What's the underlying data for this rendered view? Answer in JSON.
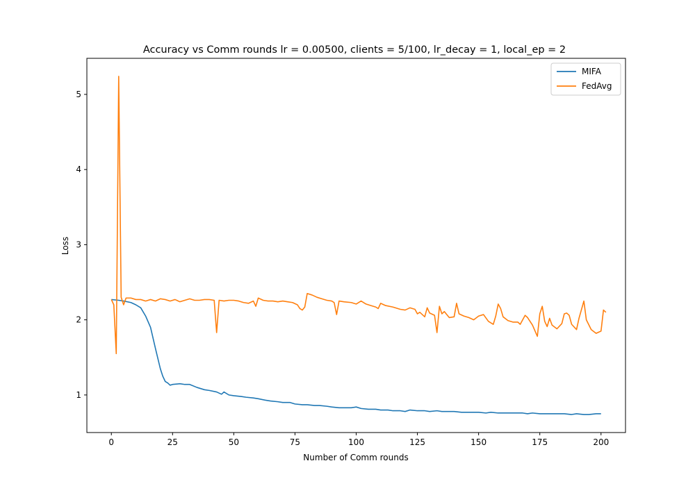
{
  "chart_data": {
    "type": "line",
    "title": "Accuracy vs Comm rounds lr = 0.00500, clients = 5/100, lr_decay = 1, local_ep = 2",
    "xlabel": "Number of Comm rounds",
    "ylabel": "Loss",
    "xlim": [
      -10,
      210
    ],
    "ylim": [
      0.5,
      5.48
    ],
    "xticks": [
      0,
      25,
      50,
      75,
      100,
      125,
      150,
      175,
      200
    ],
    "yticks": [
      1,
      2,
      3,
      4,
      5
    ],
    "grid": false,
    "legend": "top-right",
    "series": [
      {
        "name": "MIFA",
        "color": "#1f77b4",
        "points": [
          [
            0,
            2.27
          ],
          [
            3,
            2.26
          ],
          [
            5,
            2.25
          ],
          [
            8,
            2.23
          ],
          [
            10,
            2.2
          ],
          [
            12,
            2.16
          ],
          [
            14,
            2.05
          ],
          [
            16,
            1.9
          ],
          [
            18,
            1.62
          ],
          [
            20,
            1.35
          ],
          [
            21,
            1.25
          ],
          [
            22,
            1.18
          ],
          [
            23,
            1.16
          ],
          [
            24,
            1.13
          ],
          [
            25,
            1.14
          ],
          [
            28,
            1.15
          ],
          [
            30,
            1.14
          ],
          [
            32,
            1.14
          ],
          [
            35,
            1.1
          ],
          [
            38,
            1.07
          ],
          [
            40,
            1.06
          ],
          [
            43,
            1.04
          ],
          [
            45,
            1.01
          ],
          [
            46,
            1.04
          ],
          [
            48,
            1.0
          ],
          [
            50,
            0.99
          ],
          [
            53,
            0.98
          ],
          [
            55,
            0.97
          ],
          [
            58,
            0.96
          ],
          [
            60,
            0.95
          ],
          [
            63,
            0.93
          ],
          [
            65,
            0.92
          ],
          [
            68,
            0.91
          ],
          [
            70,
            0.9
          ],
          [
            73,
            0.9
          ],
          [
            75,
            0.88
          ],
          [
            78,
            0.87
          ],
          [
            80,
            0.87
          ],
          [
            83,
            0.86
          ],
          [
            85,
            0.86
          ],
          [
            88,
            0.85
          ],
          [
            90,
            0.84
          ],
          [
            93,
            0.83
          ],
          [
            95,
            0.83
          ],
          [
            98,
            0.83
          ],
          [
            100,
            0.84
          ],
          [
            102,
            0.82
          ],
          [
            105,
            0.81
          ],
          [
            108,
            0.81
          ],
          [
            110,
            0.8
          ],
          [
            113,
            0.8
          ],
          [
            115,
            0.79
          ],
          [
            118,
            0.79
          ],
          [
            120,
            0.78
          ],
          [
            122,
            0.8
          ],
          [
            125,
            0.79
          ],
          [
            128,
            0.79
          ],
          [
            130,
            0.78
          ],
          [
            133,
            0.79
          ],
          [
            135,
            0.78
          ],
          [
            138,
            0.78
          ],
          [
            140,
            0.78
          ],
          [
            143,
            0.77
          ],
          [
            145,
            0.77
          ],
          [
            148,
            0.77
          ],
          [
            150,
            0.77
          ],
          [
            153,
            0.76
          ],
          [
            155,
            0.77
          ],
          [
            158,
            0.76
          ],
          [
            160,
            0.76
          ],
          [
            163,
            0.76
          ],
          [
            165,
            0.76
          ],
          [
            168,
            0.76
          ],
          [
            170,
            0.75
          ],
          [
            172,
            0.76
          ],
          [
            175,
            0.75
          ],
          [
            178,
            0.75
          ],
          [
            180,
            0.75
          ],
          [
            183,
            0.75
          ],
          [
            185,
            0.75
          ],
          [
            188,
            0.74
          ],
          [
            190,
            0.75
          ],
          [
            193,
            0.74
          ],
          [
            195,
            0.74
          ],
          [
            198,
            0.75
          ],
          [
            200,
            0.75
          ]
        ]
      },
      {
        "name": "FedAvg",
        "color": "#ff7f0e",
        "points": [
          [
            0,
            2.27
          ],
          [
            1,
            2.2
          ],
          [
            2,
            1.55
          ],
          [
            3,
            5.24
          ],
          [
            4,
            2.3
          ],
          [
            5,
            2.2
          ],
          [
            6,
            2.29
          ],
          [
            8,
            2.29
          ],
          [
            10,
            2.27
          ],
          [
            12,
            2.27
          ],
          [
            14,
            2.25
          ],
          [
            16,
            2.27
          ],
          [
            18,
            2.25
          ],
          [
            20,
            2.28
          ],
          [
            22,
            2.27
          ],
          [
            24,
            2.25
          ],
          [
            26,
            2.27
          ],
          [
            28,
            2.24
          ],
          [
            30,
            2.26
          ],
          [
            32,
            2.28
          ],
          [
            34,
            2.26
          ],
          [
            36,
            2.26
          ],
          [
            38,
            2.27
          ],
          [
            40,
            2.27
          ],
          [
            42,
            2.26
          ],
          [
            43,
            1.83
          ],
          [
            44,
            2.26
          ],
          [
            46,
            2.25
          ],
          [
            48,
            2.26
          ],
          [
            50,
            2.26
          ],
          [
            52,
            2.25
          ],
          [
            54,
            2.23
          ],
          [
            56,
            2.22
          ],
          [
            58,
            2.25
          ],
          [
            59,
            2.18
          ],
          [
            60,
            2.29
          ],
          [
            62,
            2.26
          ],
          [
            64,
            2.25
          ],
          [
            66,
            2.25
          ],
          [
            68,
            2.24
          ],
          [
            70,
            2.25
          ],
          [
            72,
            2.24
          ],
          [
            74,
            2.23
          ],
          [
            76,
            2.2
          ],
          [
            77,
            2.15
          ],
          [
            78,
            2.13
          ],
          [
            79,
            2.17
          ],
          [
            80,
            2.35
          ],
          [
            82,
            2.33
          ],
          [
            84,
            2.3
          ],
          [
            86,
            2.28
          ],
          [
            88,
            2.26
          ],
          [
            90,
            2.25
          ],
          [
            91,
            2.23
          ],
          [
            92,
            2.07
          ],
          [
            93,
            2.25
          ],
          [
            95,
            2.24
          ],
          [
            98,
            2.23
          ],
          [
            100,
            2.21
          ],
          [
            102,
            2.25
          ],
          [
            104,
            2.21
          ],
          [
            106,
            2.19
          ],
          [
            108,
            2.17
          ],
          [
            109,
            2.15
          ],
          [
            110,
            2.22
          ],
          [
            112,
            2.19
          ],
          [
            115,
            2.17
          ],
          [
            118,
            2.14
          ],
          [
            120,
            2.13
          ],
          [
            122,
            2.16
          ],
          [
            124,
            2.14
          ],
          [
            125,
            2.08
          ],
          [
            126,
            2.1
          ],
          [
            128,
            2.04
          ],
          [
            129,
            2.16
          ],
          [
            130,
            2.09
          ],
          [
            132,
            2.06
          ],
          [
            133,
            1.83
          ],
          [
            134,
            2.18
          ],
          [
            135,
            2.08
          ],
          [
            136,
            2.11
          ],
          [
            138,
            2.03
          ],
          [
            140,
            2.04
          ],
          [
            141,
            2.22
          ],
          [
            142,
            2.08
          ],
          [
            144,
            2.05
          ],
          [
            146,
            2.03
          ],
          [
            148,
            2.0
          ],
          [
            150,
            2.05
          ],
          [
            152,
            2.07
          ],
          [
            154,
            1.98
          ],
          [
            156,
            1.94
          ],
          [
            157,
            2.05
          ],
          [
            158,
            2.21
          ],
          [
            159,
            2.15
          ],
          [
            160,
            2.04
          ],
          [
            162,
            1.99
          ],
          [
            164,
            1.97
          ],
          [
            166,
            1.97
          ],
          [
            167,
            1.94
          ],
          [
            168,
            2.0
          ],
          [
            169,
            2.06
          ],
          [
            170,
            2.03
          ],
          [
            172,
            1.93
          ],
          [
            174,
            1.78
          ],
          [
            175,
            2.08
          ],
          [
            176,
            2.18
          ],
          [
            177,
            1.98
          ],
          [
            178,
            1.91
          ],
          [
            179,
            2.02
          ],
          [
            180,
            1.93
          ],
          [
            182,
            1.88
          ],
          [
            184,
            1.95
          ],
          [
            185,
            2.08
          ],
          [
            186,
            2.09
          ],
          [
            187,
            2.06
          ],
          [
            188,
            1.94
          ],
          [
            190,
            1.87
          ],
          [
            191,
            2.02
          ],
          [
            193,
            2.25
          ],
          [
            194,
            2.0
          ],
          [
            196,
            1.87
          ],
          [
            198,
            1.82
          ],
          [
            200,
            1.85
          ],
          [
            201,
            2.13
          ],
          [
            202,
            2.1
          ]
        ]
      }
    ]
  }
}
